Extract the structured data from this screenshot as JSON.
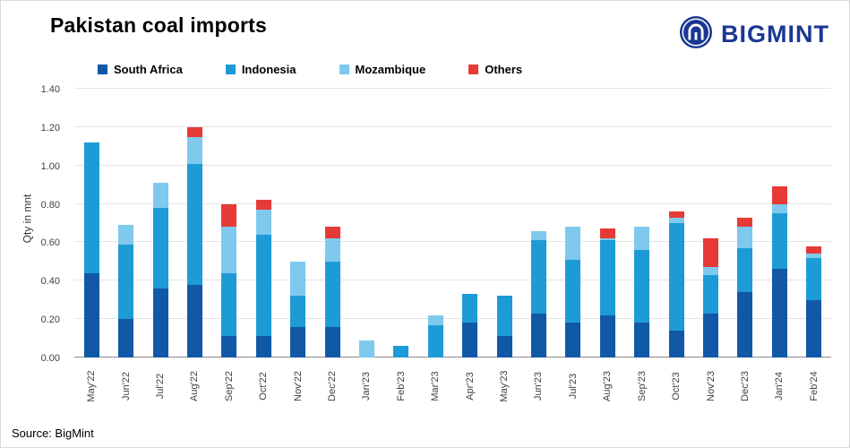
{
  "header": {
    "title": "Pakistan coal imports",
    "brand": "BIGMINT",
    "brand_color": "#1a3793"
  },
  "footer": {
    "source": "Source: BigMint"
  },
  "chart_data": {
    "type": "bar",
    "stacked": true,
    "title": "Pakistan coal imports",
    "xlabel": "",
    "ylabel": "Qty in mnt",
    "ylim": [
      0,
      1.4
    ],
    "yticks": [
      0.0,
      0.2,
      0.4,
      0.6,
      0.8,
      1.0,
      1.2,
      1.4
    ],
    "grid": "horizontal",
    "legend_position": "top",
    "categories": [
      "May'22",
      "Jun'22",
      "Jul'22",
      "Aug'22",
      "Sep'22",
      "Oct'22",
      "Nov'22",
      "Dec'22",
      "Jan'23",
      "Feb'23",
      "Mar'23",
      "Apr'23",
      "May'23",
      "Jun'23",
      "Jul'23",
      "Aug'23",
      "Sep'23",
      "Oct'23",
      "Nov'23",
      "Dec'23",
      "Jan'24",
      "Feb'24"
    ],
    "series": [
      {
        "name": "South Africa",
        "color": "#1158a7",
        "values": [
          0.44,
          0.2,
          0.36,
          0.38,
          0.11,
          0.11,
          0.16,
          0.16,
          0.0,
          0.0,
          0.0,
          0.18,
          0.11,
          0.23,
          0.18,
          0.22,
          0.18,
          0.14,
          0.23,
          0.34,
          0.46,
          0.3
        ]
      },
      {
        "name": "Indonesia",
        "color": "#1d9bd7",
        "values": [
          0.68,
          0.39,
          0.42,
          0.63,
          0.33,
          0.53,
          0.16,
          0.34,
          0.0,
          0.06,
          0.17,
          0.15,
          0.21,
          0.38,
          0.33,
          0.39,
          0.38,
          0.56,
          0.2,
          0.23,
          0.29,
          0.22
        ]
      },
      {
        "name": "Mozambique",
        "color": "#7fc9ee",
        "values": [
          0.0,
          0.1,
          0.13,
          0.14,
          0.24,
          0.13,
          0.18,
          0.12,
          0.09,
          0.0,
          0.05,
          0.0,
          0.0,
          0.05,
          0.17,
          0.01,
          0.12,
          0.03,
          0.04,
          0.11,
          0.05,
          0.02
        ]
      },
      {
        "name": "Others",
        "color": "#e63a36",
        "values": [
          0.0,
          0.0,
          0.0,
          0.05,
          0.12,
          0.05,
          0.0,
          0.06,
          0.0,
          0.0,
          0.0,
          0.0,
          0.0,
          0.0,
          0.0,
          0.05,
          0.0,
          0.03,
          0.15,
          0.05,
          0.09,
          0.04
        ]
      }
    ]
  }
}
